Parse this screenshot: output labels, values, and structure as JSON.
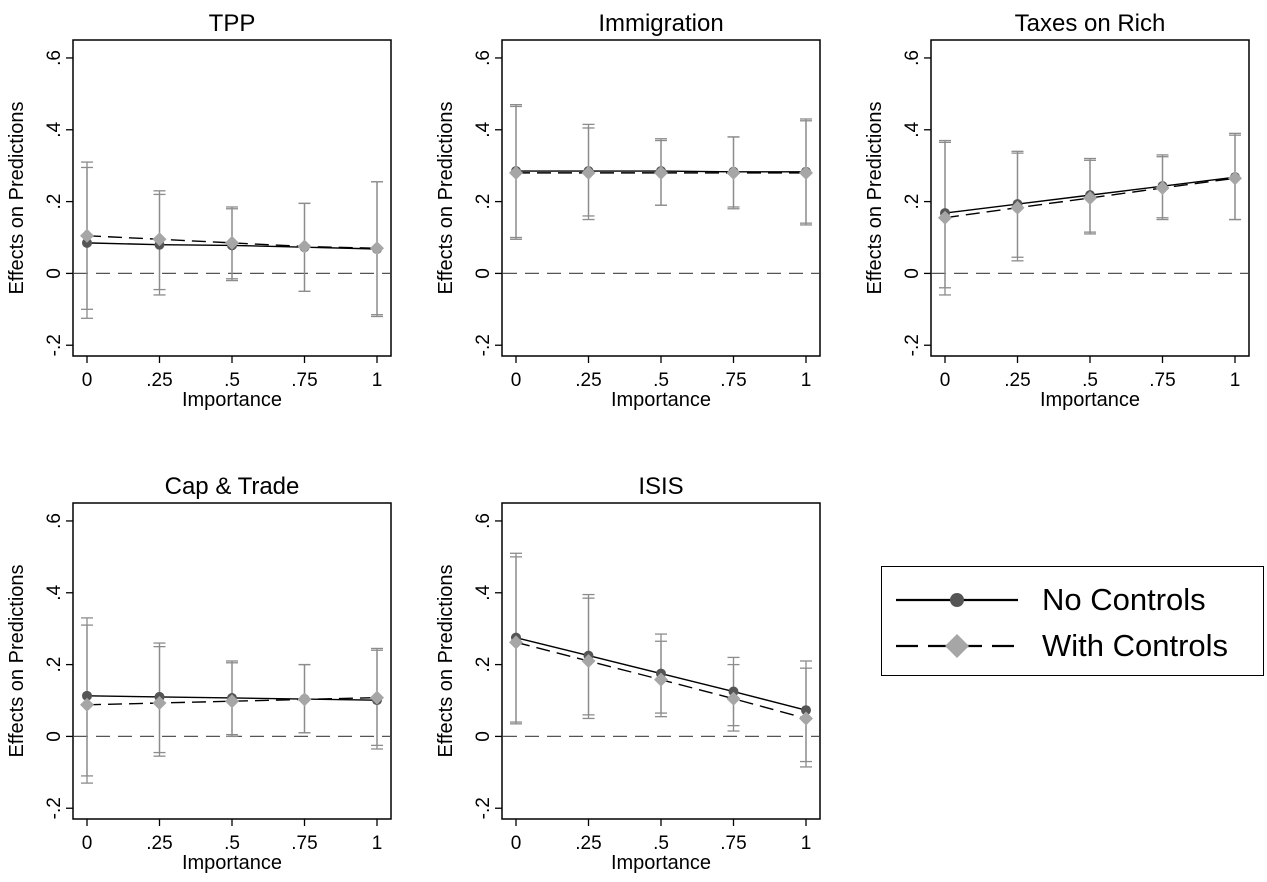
{
  "chart_data": [
    {
      "type": "line",
      "title": "TPP",
      "xlabel": "Importance",
      "ylabel": "Effects on Predictions",
      "x": [
        0,
        0.25,
        0.5,
        0.75,
        1
      ],
      "xtick_labels": [
        "0",
        ".25",
        ".5",
        ".75",
        "1"
      ],
      "ytick_values": [
        -0.2,
        0,
        0.2,
        0.4,
        0.6
      ],
      "ytick_labels": [
        "-.2",
        "0",
        ".2",
        ".4",
        ".6"
      ],
      "ylim": [
        -0.23,
        0.65
      ],
      "reference_line": 0,
      "series": [
        {
          "name": "No Controls",
          "values": [
            0.085,
            0.08,
            0.078,
            0.073,
            0.068
          ],
          "lower": [
            -0.125,
            -0.06,
            -0.02,
            -0.05,
            -0.12
          ],
          "upper": [
            0.295,
            0.22,
            0.18,
            0.195,
            0.255
          ]
        },
        {
          "name": "With Controls",
          "values": [
            0.105,
            0.095,
            0.085,
            0.075,
            0.07
          ],
          "lower": [
            -0.1,
            -0.045,
            -0.015,
            -0.05,
            -0.115
          ],
          "upper": [
            0.31,
            0.23,
            0.185,
            0.195,
            0.255
          ]
        }
      ]
    },
    {
      "type": "line",
      "title": "Immigration",
      "xlabel": "Importance",
      "ylabel": "Effects on Predictions",
      "x": [
        0,
        0.25,
        0.5,
        0.75,
        1
      ],
      "xtick_labels": [
        "0",
        ".25",
        ".5",
        ".75",
        "1"
      ],
      "ytick_values": [
        -0.2,
        0,
        0.2,
        0.4,
        0.6
      ],
      "ytick_labels": [
        "-.2",
        "0",
        ".2",
        ".4",
        ".6"
      ],
      "ylim": [
        -0.23,
        0.65
      ],
      "reference_line": 0,
      "series": [
        {
          "name": "No Controls",
          "values": [
            0.285,
            0.285,
            0.285,
            0.283,
            0.283
          ],
          "lower": [
            0.1,
            0.15,
            0.19,
            0.18,
            0.14
          ],
          "upper": [
            0.47,
            0.415,
            0.375,
            0.38,
            0.43
          ]
        },
        {
          "name": "With Controls",
          "values": [
            0.28,
            0.28,
            0.28,
            0.28,
            0.28
          ],
          "lower": [
            0.095,
            0.16,
            0.19,
            0.185,
            0.135
          ],
          "upper": [
            0.465,
            0.405,
            0.37,
            0.38,
            0.425
          ]
        }
      ]
    },
    {
      "type": "line",
      "title": "Taxes on Rich",
      "xlabel": "Importance",
      "ylabel": "Effects on Predictions",
      "x": [
        0,
        0.25,
        0.5,
        0.75,
        1
      ],
      "xtick_labels": [
        "0",
        ".25",
        ".5",
        ".75",
        "1"
      ],
      "ytick_values": [
        -0.2,
        0,
        0.2,
        0.4,
        0.6
      ],
      "ytick_labels": [
        "-.2",
        "0",
        ".2",
        ".4",
        ".6"
      ],
      "ylim": [
        -0.23,
        0.65
      ],
      "reference_line": 0,
      "series": [
        {
          "name": "No Controls",
          "values": [
            0.168,
            0.193,
            0.218,
            0.243,
            0.268
          ],
          "lower": [
            -0.04,
            0.045,
            0.115,
            0.155,
            0.15
          ],
          "upper": [
            0.37,
            0.34,
            0.32,
            0.33,
            0.39
          ]
        },
        {
          "name": "With Controls",
          "values": [
            0.155,
            0.183,
            0.21,
            0.238,
            0.265
          ],
          "lower": [
            -0.06,
            0.035,
            0.11,
            0.15,
            0.15
          ],
          "upper": [
            0.365,
            0.335,
            0.315,
            0.325,
            0.385
          ]
        }
      ]
    },
    {
      "type": "line",
      "title": "Cap & Trade",
      "xlabel": "Importance",
      "ylabel": "Effects on Predictions",
      "x": [
        0,
        0.25,
        0.5,
        0.75,
        1
      ],
      "xtick_labels": [
        "0",
        ".25",
        ".5",
        ".75",
        "1"
      ],
      "ytick_values": [
        -0.2,
        0,
        0.2,
        0.4,
        0.6
      ],
      "ytick_labels": [
        "-.2",
        "0",
        ".2",
        ".4",
        ".6"
      ],
      "ylim": [
        -0.23,
        0.65
      ],
      "reference_line": 0,
      "series": [
        {
          "name": "No Controls",
          "values": [
            0.113,
            0.11,
            0.107,
            0.104,
            0.101
          ],
          "lower": [
            -0.11,
            -0.045,
            0.005,
            0.01,
            -0.035
          ],
          "upper": [
            0.33,
            0.26,
            0.21,
            0.2,
            0.245
          ]
        },
        {
          "name": "With Controls",
          "values": [
            0.088,
            0.093,
            0.098,
            0.103,
            0.108
          ],
          "lower": [
            -0.13,
            -0.055,
            0.0,
            0.01,
            -0.025
          ],
          "upper": [
            0.31,
            0.25,
            0.205,
            0.2,
            0.24
          ]
        }
      ]
    },
    {
      "type": "line",
      "title": "ISIS",
      "xlabel": "Importance",
      "ylabel": "Effects on Predictions",
      "x": [
        0,
        0.25,
        0.5,
        0.75,
        1
      ],
      "xtick_labels": [
        "0",
        ".25",
        ".5",
        ".75",
        "1"
      ],
      "ytick_values": [
        -0.2,
        0,
        0.2,
        0.4,
        0.6
      ],
      "ytick_labels": [
        "-.2",
        "0",
        ".2",
        ".4",
        ".6"
      ],
      "ylim": [
        -0.23,
        0.65
      ],
      "reference_line": 0,
      "series": [
        {
          "name": "No Controls",
          "values": [
            0.275,
            0.225,
            0.175,
            0.125,
            0.073
          ],
          "lower": [
            0.04,
            0.06,
            0.065,
            0.03,
            -0.07
          ],
          "upper": [
            0.51,
            0.395,
            0.285,
            0.22,
            0.21
          ]
        },
        {
          "name": "With Controls",
          "values": [
            0.262,
            0.21,
            0.158,
            0.105,
            0.05
          ],
          "lower": [
            0.035,
            0.05,
            0.055,
            0.015,
            -0.085
          ],
          "upper": [
            0.5,
            0.385,
            0.265,
            0.2,
            0.19
          ]
        }
      ]
    }
  ],
  "legend": {
    "items": [
      {
        "label": "No Controls",
        "line_style": "solid",
        "marker": "circle"
      },
      {
        "label": "With Controls",
        "line_style": "dashed",
        "marker": "diamond"
      }
    ]
  },
  "colors": {
    "series_line": "#000000",
    "errorbar": "#8c8c8c",
    "marker_no_controls": "#555555",
    "marker_with_controls": "#a6a6a6",
    "reference_line": "#555555"
  }
}
